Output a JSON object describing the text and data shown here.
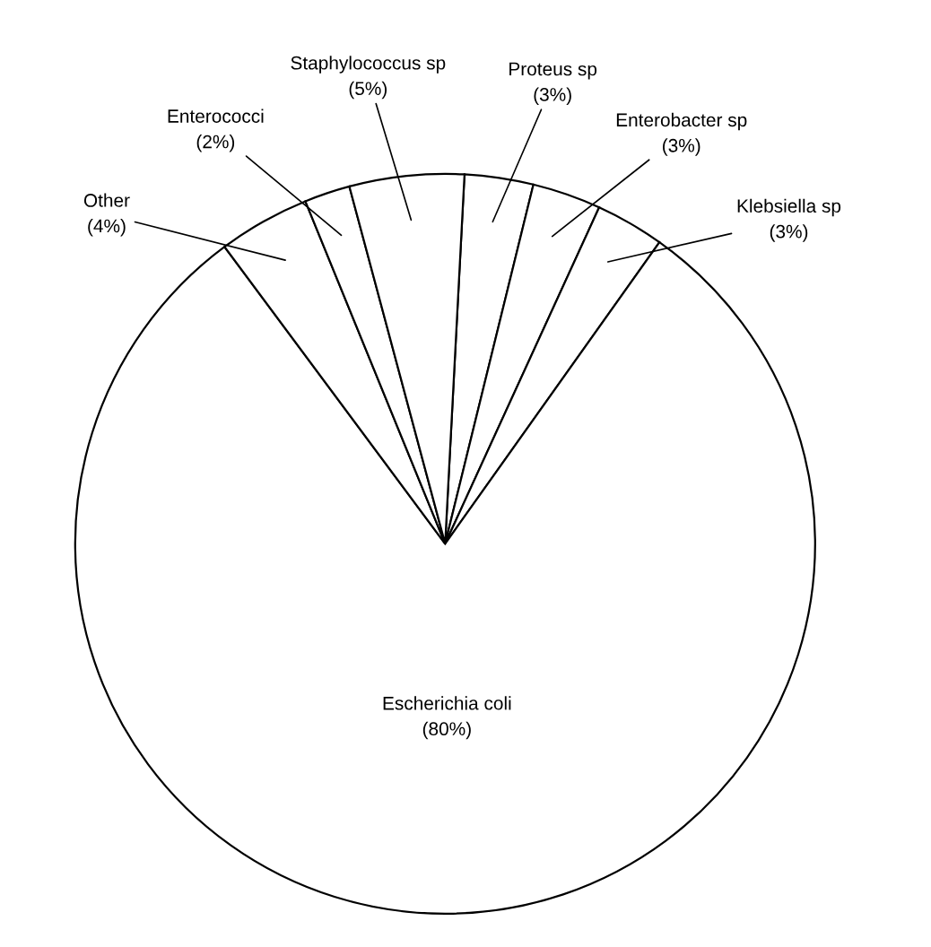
{
  "chart_data": {
    "type": "pie",
    "categories": [
      "Proteus sp",
      "Enterobacter sp",
      "Klebsiella sp",
      "Escherichia coli",
      "Other",
      "Enterococci",
      "Staphylococcus sp"
    ],
    "values": [
      3,
      3,
      3,
      80,
      4,
      2,
      5
    ],
    "value_labels": [
      "(3%)",
      "(3%)",
      "(3%)",
      "(80%)",
      "(4%)",
      "(2%)",
      "(5%)"
    ],
    "colors": [
      "#ffffff",
      "#ffffff",
      "#ffffff",
      "#ffffff",
      "#ffffff",
      "#ffffff",
      "#ffffff"
    ]
  }
}
